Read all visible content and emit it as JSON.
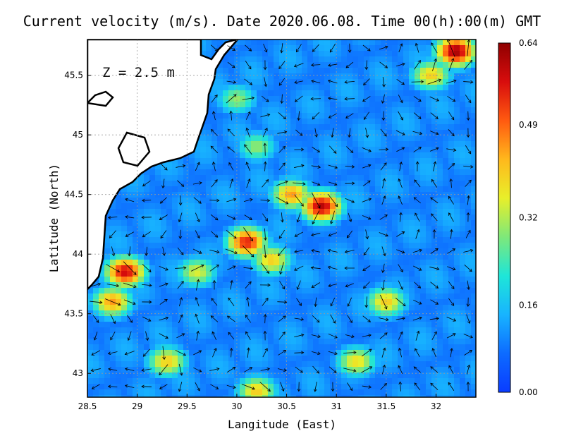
{
  "title": "Current velocity (m/s). Date 2020.06.08. Time 00(h):00(m) GMT",
  "depth_label": "Z = 2.5 m",
  "xlabel": "Langitude (East)",
  "ylabel": "Latitude (North)",
  "x_ticks": [
    "28.5",
    "29",
    "29.5",
    "30",
    "30.5",
    "31",
    "31.5",
    "32"
  ],
  "y_ticks": [
    "45.5",
    "45",
    "44.5",
    "44",
    "43.5",
    "43"
  ],
  "colorbar": {
    "ticks": [
      "0.64",
      "0.49",
      "0.32",
      "0.16",
      "0.00"
    ],
    "stops": [
      "#0a3cff",
      "#0d6bff",
      "#18b4ff",
      "#1ee6d8",
      "#7ee87a",
      "#e8ef2a",
      "#ffb81c",
      "#ff5a10",
      "#d80d0d",
      "#8f0000"
    ]
  },
  "colors": {
    "land": "#ffffff",
    "coast": "#000000",
    "grid": "#9a9a9a"
  },
  "map_extent": {
    "lon": [
      28.5,
      32.4
    ],
    "lat": [
      42.8,
      45.8
    ]
  },
  "color_range": [
    0.0,
    0.64
  ],
  "hotspots": [
    {
      "lon": 28.88,
      "lat": 43.85,
      "v": 0.58
    },
    {
      "lon": 28.75,
      "lat": 43.6,
      "v": 0.45
    },
    {
      "lon": 30.85,
      "lat": 44.4,
      "v": 0.6
    },
    {
      "lon": 30.55,
      "lat": 44.5,
      "v": 0.45
    },
    {
      "lon": 30.1,
      "lat": 44.1,
      "v": 0.55
    },
    {
      "lon": 30.35,
      "lat": 43.95,
      "v": 0.4
    },
    {
      "lon": 32.2,
      "lat": 45.7,
      "v": 0.62
    },
    {
      "lon": 31.95,
      "lat": 45.5,
      "v": 0.4
    },
    {
      "lon": 31.5,
      "lat": 43.6,
      "v": 0.4
    },
    {
      "lon": 31.2,
      "lat": 43.1,
      "v": 0.38
    },
    {
      "lon": 29.3,
      "lat": 43.1,
      "v": 0.4
    },
    {
      "lon": 30.2,
      "lat": 42.85,
      "v": 0.4
    },
    {
      "lon": 29.6,
      "lat": 43.85,
      "v": 0.35
    },
    {
      "lon": 30.0,
      "lat": 45.3,
      "v": 0.3
    },
    {
      "lon": 30.2,
      "lat": 44.9,
      "v": 0.3
    }
  ]
}
